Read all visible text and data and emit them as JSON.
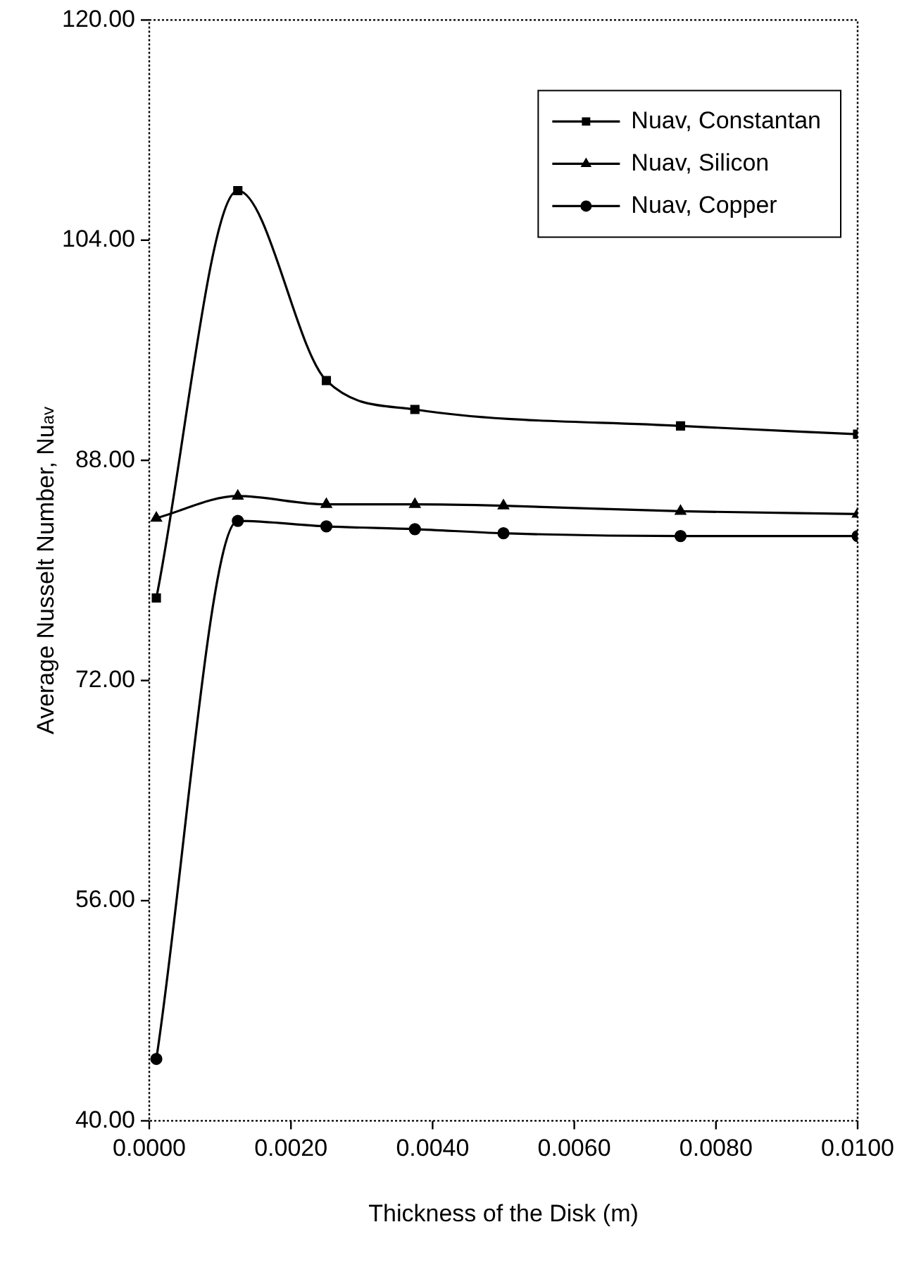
{
  "chart_data": {
    "type": "line",
    "xlabel": "Thickness of the Disk (m)",
    "ylabel": "Average Nusselt Number, Nu$_{av}$",
    "xlim": [
      0,
      0.01
    ],
    "xticks": [
      {
        "value": 0,
        "label": "0.0000"
      },
      {
        "value": 0.002,
        "label": "0.0020"
      },
      {
        "value": 0.004,
        "label": "0.0040"
      },
      {
        "value": 0.006,
        "label": "0.0060"
      },
      {
        "value": 0.008,
        "label": "0.0080"
      },
      {
        "value": 0.01,
        "label": "0.0100"
      }
    ],
    "ylim": [
      40,
      120
    ],
    "yticks": [
      {
        "value": 40,
        "label": "40.00"
      },
      {
        "value": 56,
        "label": "56.00"
      },
      {
        "value": 72,
        "label": "72.00"
      },
      {
        "value": 88,
        "label": "88.00"
      },
      {
        "value": 104,
        "label": "104.00"
      },
      {
        "value": 120,
        "label": "120.00"
      }
    ],
    "grid": false,
    "legend": "top right",
    "line_style": "solid",
    "series": [
      {
        "name": "Nuav, Constantan",
        "color": "#000000",
        "marker": "square",
        "x": [
          0.0001,
          0.00125,
          0.0025,
          0.00375,
          0.0075,
          0.01
        ],
        "values": [
          78,
          107.6,
          93.8,
          91.7,
          90.5,
          89.9
        ]
      },
      {
        "name": "Nuav, Silicon",
        "color": "#000000",
        "marker": "triangle",
        "x": [
          0.0001,
          0.00125,
          0.0025,
          0.00375,
          0.005,
          0.0075,
          0.01
        ],
        "values": [
          83.8,
          85.4,
          84.8,
          84.8,
          84.7,
          84.3,
          84.1
        ]
      },
      {
        "name": "Nuav, Copper",
        "color": "#000000",
        "marker": "circle",
        "x": [
          0.0001,
          0.00125,
          0.0025,
          0.00375,
          0.005,
          0.0075,
          0.01
        ],
        "values": [
          44.5,
          83.6,
          83.2,
          83,
          82.7,
          82.5,
          82.5
        ]
      }
    ]
  }
}
